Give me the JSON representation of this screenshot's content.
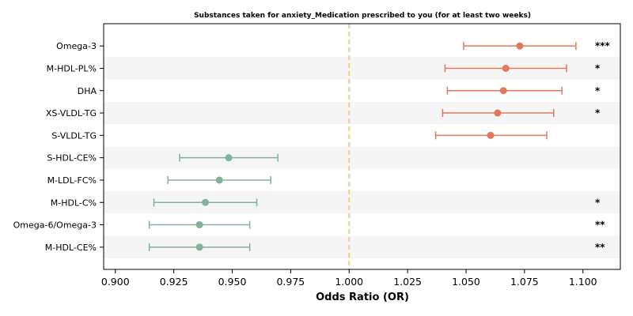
{
  "chart_data": {
    "type": "forest",
    "title": "Substances taken for anxiety_Medication prescribed to you (for at least two weeks)",
    "xlabel": "Odds Ratio (OR)",
    "xlim": [
      0.895,
      1.116
    ],
    "xticks": [
      "0.900",
      "0.925",
      "0.950",
      "0.975",
      "1.000",
      "1.025",
      "1.050",
      "1.075",
      "1.100"
    ],
    "xtick_values": [
      0.9,
      0.925,
      0.95,
      0.975,
      1.0,
      1.025,
      1.05,
      1.075,
      1.1
    ],
    "reference_line": 1.0,
    "grid": false,
    "alternating_row_shading": true,
    "colors": {
      "positive": "#e07a5f",
      "negative": "#81b29a",
      "reference": "#f2cc8f"
    },
    "rows": [
      {
        "label": "Omega-3",
        "or": 1.073,
        "ci_low": 1.049,
        "ci_high": 1.097,
        "significance": "***"
      },
      {
        "label": "M-HDL-PL%",
        "or": 1.067,
        "ci_low": 1.041,
        "ci_high": 1.093,
        "significance": "*"
      },
      {
        "label": "DHA",
        "or": 1.066,
        "ci_low": 1.042,
        "ci_high": 1.091,
        "significance": "*"
      },
      {
        "label": "XS-VLDL-TG",
        "or": 1.0635,
        "ci_low": 1.04,
        "ci_high": 1.0875,
        "significance": "*"
      },
      {
        "label": "S-VLDL-TG",
        "or": 1.0605,
        "ci_low": 1.037,
        "ci_high": 1.0845,
        "significance": ""
      },
      {
        "label": "S-HDL-CE%",
        "or": 0.9485,
        "ci_low": 0.9275,
        "ci_high": 0.9695,
        "significance": ""
      },
      {
        "label": "M-LDL-FC%",
        "or": 0.9445,
        "ci_low": 0.9225,
        "ci_high": 0.9665,
        "significance": ""
      },
      {
        "label": "M-HDL-C%",
        "or": 0.9385,
        "ci_low": 0.9165,
        "ci_high": 0.9605,
        "significance": "*"
      },
      {
        "label": "Omega-6/Omega-3",
        "or": 0.936,
        "ci_low": 0.9145,
        "ci_high": 0.9575,
        "significance": "**"
      },
      {
        "label": "M-HDL-CE%",
        "or": 0.936,
        "ci_low": 0.9145,
        "ci_high": 0.9575,
        "significance": "**"
      }
    ]
  }
}
